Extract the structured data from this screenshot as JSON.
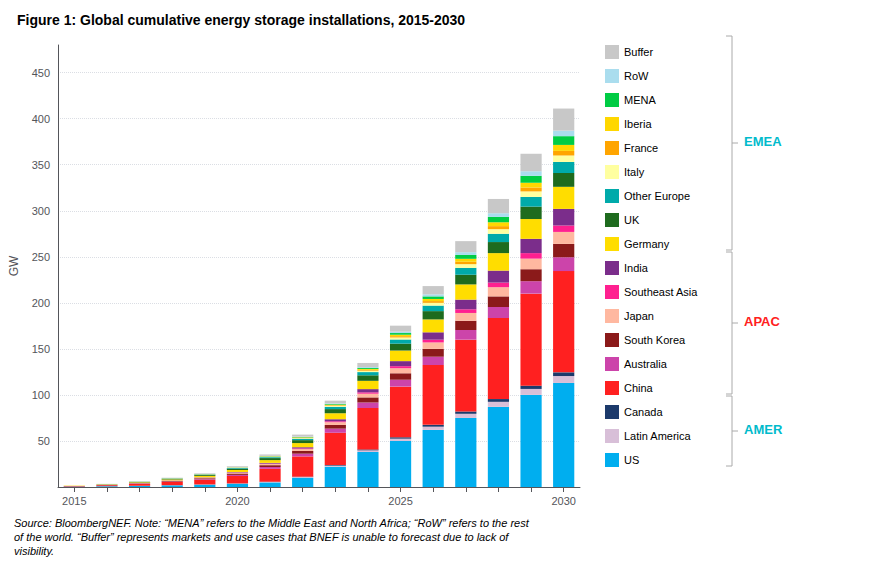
{
  "chart_data": {
    "type": "bar",
    "title": "Figure 1: Global cumulative energy storage installations, 2015-2030",
    "ylabel": "GW",
    "note": "Source: BloombergNEF. Note: “MENA” refers to the Middle East and North Africa; “RoW” refers to the rest\nof the world. “Buffer” represents markets and use cases that BNEF is unable to forecast due to lack of\nvisibility.",
    "categories": [
      "2015",
      null,
      null,
      null,
      null,
      "2020",
      null,
      null,
      null,
      null,
      "2025",
      null,
      null,
      null,
      null,
      "2030"
    ],
    "stacked": true,
    "grid": true,
    "legend": "right",
    "ylim": [
      0,
      480
    ],
    "yticks": [
      50,
      100,
      150,
      200,
      250,
      300,
      350,
      400,
      450
    ],
    "series": [
      {
        "name": "US",
        "color": "#00AEEF",
        "values": [
          0.5,
          0.8,
          1.2,
          1.8,
          2.5,
          3.5,
          5.0,
          10.0,
          22.0,
          38.0,
          50.0,
          62.0,
          75.0,
          87.0,
          100.0,
          113.0
        ]
      },
      {
        "name": "Latin America",
        "color": "#D8BFD8",
        "values": [
          0.05,
          0.08,
          0.1,
          0.15,
          0.2,
          0.3,
          0.5,
          0.8,
          1.2,
          1.8,
          2.5,
          3.5,
          4.5,
          5.5,
          6.5,
          7.5
        ]
      },
      {
        "name": "Canada",
        "color": "#1C3A6B",
        "values": [
          0.02,
          0.03,
          0.05,
          0.08,
          0.1,
          0.15,
          0.2,
          0.4,
          0.7,
          1.0,
          1.5,
          2.0,
          2.5,
          3.0,
          3.5,
          4.0
        ]
      },
      {
        "name": "China",
        "color": "#FF2020",
        "values": [
          0.5,
          1.0,
          2.0,
          3.5,
          5.0,
          8.0,
          14.0,
          22.0,
          35.0,
          45.0,
          55.0,
          65.0,
          78.0,
          88.0,
          100.0,
          110.0
        ]
      },
      {
        "name": "Australia",
        "color": "#CC44AA",
        "values": [
          0.05,
          0.1,
          0.2,
          0.4,
          0.7,
          1.2,
          2.0,
          3.0,
          4.5,
          6.0,
          7.5,
          9.0,
          10.5,
          12.0,
          13.5,
          15.0
        ]
      },
      {
        "name": "South Korea",
        "color": "#8B1A1A",
        "values": [
          0.1,
          0.2,
          0.4,
          0.6,
          1.0,
          1.5,
          2.0,
          3.0,
          4.0,
          5.5,
          7.0,
          8.5,
          10.0,
          11.5,
          13.0,
          14.5
        ]
      },
      {
        "name": "Japan",
        "color": "#FFB8A0",
        "values": [
          0.1,
          0.15,
          0.25,
          0.4,
          0.6,
          0.9,
          1.3,
          2.0,
          3.0,
          4.0,
          5.5,
          7.0,
          8.5,
          10.0,
          11.5,
          13.0
        ]
      },
      {
        "name": "Southeast Asia",
        "color": "#FF2090",
        "values": [
          0.02,
          0.03,
          0.05,
          0.08,
          0.12,
          0.2,
          0.4,
          0.7,
          1.0,
          1.5,
          2.2,
          3.0,
          4.0,
          5.0,
          6.0,
          7.0
        ]
      },
      {
        "name": "India",
        "color": "#7B2D8B",
        "values": [
          0.05,
          0.08,
          0.12,
          0.2,
          0.3,
          0.5,
          0.8,
          1.3,
          2.2,
          3.5,
          5.5,
          8.0,
          10.5,
          13.0,
          15.5,
          18.0
        ]
      },
      {
        "name": "Germany",
        "color": "#FFDD00",
        "values": [
          0.2,
          0.4,
          0.7,
          1.0,
          1.6,
          2.2,
          3.0,
          4.5,
          6.5,
          9.0,
          11.5,
          14.0,
          16.5,
          19.0,
          21.5,
          24.0
        ]
      },
      {
        "name": "UK",
        "color": "#1E6B1E",
        "values": [
          0.1,
          0.2,
          0.4,
          0.7,
          1.0,
          1.5,
          2.2,
          3.2,
          4.5,
          6.0,
          7.5,
          9.0,
          10.5,
          12.0,
          13.5,
          15.0
        ]
      },
      {
        "name": "Other Europe",
        "color": "#00AAAA",
        "values": [
          0.05,
          0.1,
          0.2,
          0.3,
          0.5,
          0.7,
          1.0,
          1.5,
          2.5,
          3.5,
          4.5,
          6.0,
          7.5,
          9.0,
          10.5,
          12.0
        ]
      },
      {
        "name": "Italy",
        "color": "#FFFFA0",
        "values": [
          0.05,
          0.08,
          0.1,
          0.15,
          0.22,
          0.3,
          0.45,
          0.7,
          1.0,
          1.5,
          2.2,
          3.0,
          4.0,
          5.0,
          6.0,
          7.0
        ]
      },
      {
        "name": "France",
        "color": "#FFA500",
        "values": [
          0.02,
          0.03,
          0.05,
          0.08,
          0.1,
          0.15,
          0.25,
          0.4,
          0.65,
          0.9,
          1.4,
          1.9,
          2.6,
          3.3,
          4.2,
          5.0
        ]
      },
      {
        "name": "Iberia",
        "color": "#FFD700",
        "values": [
          0.02,
          0.03,
          0.05,
          0.08,
          0.1,
          0.15,
          0.25,
          0.4,
          0.65,
          1.0,
          1.6,
          2.3,
          3.2,
          4.2,
          5.2,
          6.5
        ]
      },
      {
        "name": "MENA",
        "color": "#00CC44",
        "values": [
          0.02,
          0.03,
          0.05,
          0.08,
          0.1,
          0.15,
          0.25,
          0.4,
          0.7,
          1.0,
          1.8,
          2.8,
          4.2,
          5.8,
          7.5,
          9.5
        ]
      },
      {
        "name": "RoW",
        "color": "#AADDEE",
        "values": [
          0.02,
          0.03,
          0.05,
          0.08,
          0.1,
          0.15,
          0.25,
          0.4,
          0.65,
          1.0,
          1.5,
          2.2,
          3.0,
          4.0,
          5.0,
          6.0
        ]
      },
      {
        "name": "Buffer",
        "color": "#C8C8C8",
        "values": [
          0.1,
          0.15,
          0.25,
          0.4,
          0.65,
          1.0,
          1.5,
          2.2,
          3.0,
          4.5,
          6.5,
          9.0,
          12.0,
          15.5,
          19.0,
          24.0
        ]
      }
    ],
    "annotations": [
      {
        "text": "EMEA",
        "color": "#00BBCC",
        "members": [
          "Buffer",
          "RoW",
          "MENA",
          "Iberia",
          "France",
          "Italy",
          "Other Europe",
          "UK",
          "Germany"
        ]
      },
      {
        "text": "APAC",
        "color": "#FF2020",
        "members": [
          "India",
          "Southeast Asia",
          "Japan",
          "South Korea",
          "Australia",
          "China"
        ]
      },
      {
        "text": "AMER",
        "color": "#00BBCC",
        "members": [
          "Canada",
          "Latin America",
          "US"
        ]
      }
    ]
  }
}
